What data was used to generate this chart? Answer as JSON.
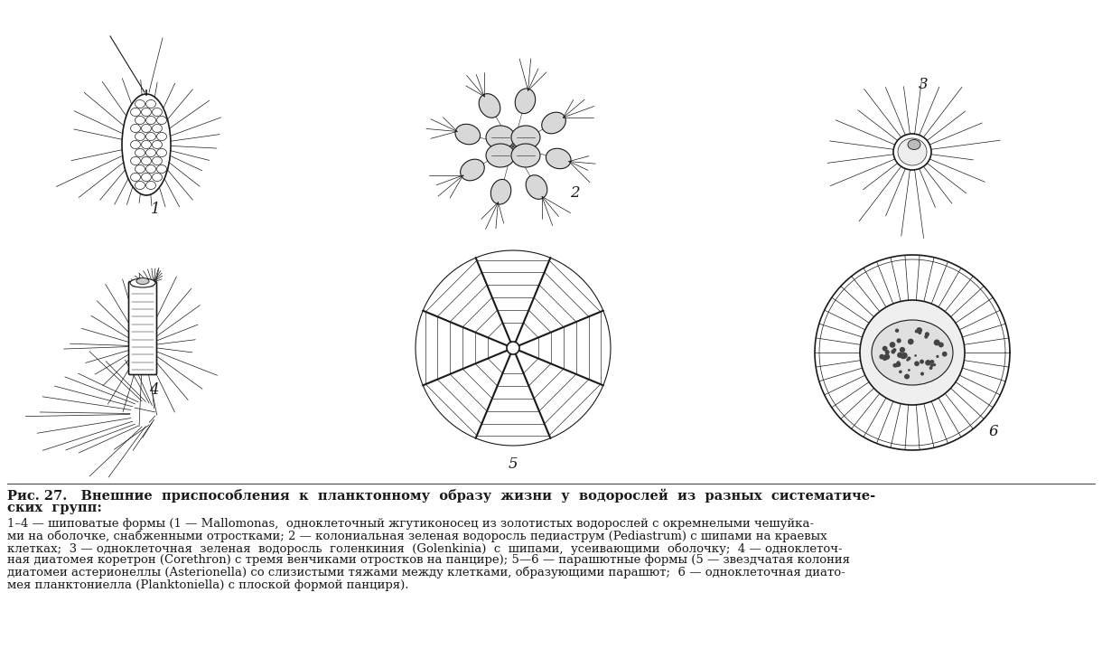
{
  "bg_color": "#ffffff",
  "ink_color": "#1a1a1a",
  "label_fontsize": 12,
  "caption_fontsize": 9.5,
  "title_fontsize": 10.5,
  "title_line1": "Рис. 27.   Внешние  приспособления  к  планктонному  образу  жизни  у  водорослей  из  разных  систематиче-",
  "title_line2": "ских  групп:",
  "caption_line1": "1–4 — шиповатые формы (1 — Mallomonas,  одноклеточный жгутиконосец из золотистых водорослей с окремнелыми чешуйка-",
  "caption_line2": "ми на оболочке, снабженными отростками; 2 — колониальная зеленая водоросль педиаструм (Pediastrum) с шипами на краевых",
  "caption_line3": "клетках;  3 — одноклеточная  зеленая  водоросль  голенкиния  (Golenkinia)  с  шипами,  усеивающими  оболочку;  4 — одноклеточ-",
  "caption_line4": "ная диатомея коретрон (Corethron) с тремя венчиками отростков на панцире); 5—6 — парашютные формы (5 — звездчатая колония",
  "caption_line5": "диатомеи астерионеллы (Asterionella) со слизистыми тяжами между клетками, образующими парашют;  6 — одноклеточная диато-",
  "caption_line6": "мея планктониелла (Planktoniella) с плоской формой панциря)."
}
